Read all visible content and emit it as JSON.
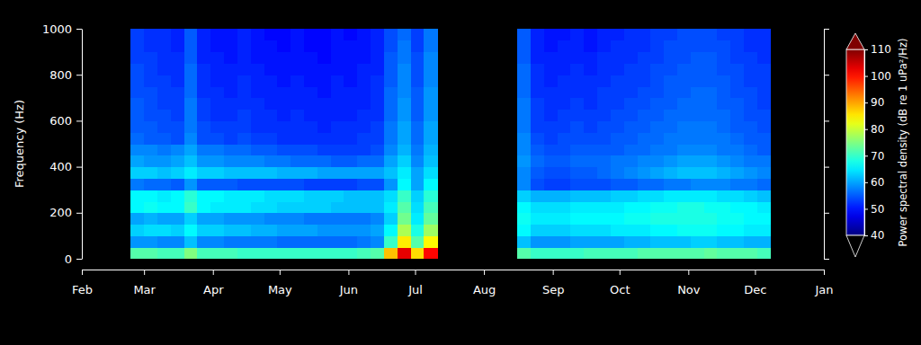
{
  "chart_data": {
    "type": "heatmap",
    "ylabel": "Frequency (Hz)",
    "xlim": [
      0,
      334
    ],
    "xticks": [
      {
        "value": 0,
        "label": "Feb"
      },
      {
        "value": 28,
        "label": "Mar"
      },
      {
        "value": 59,
        "label": "Apr"
      },
      {
        "value": 89,
        "label": "May"
      },
      {
        "value": 120,
        "label": "Jun"
      },
      {
        "value": 150,
        "label": "Jul"
      },
      {
        "value": 181,
        "label": "Aug"
      },
      {
        "value": 212,
        "label": "Sep"
      },
      {
        "value": 242,
        "label": "Oct"
      },
      {
        "value": 273,
        "label": "Nov"
      },
      {
        "value": 303,
        "label": "Dec"
      },
      {
        "value": 334,
        "label": "Jan"
      }
    ],
    "ylim": [
      0,
      1000
    ],
    "yticks": [
      0,
      200,
      400,
      600,
      800,
      1000
    ],
    "colorbar": {
      "label": "Power spectral density (dB re 1 uPa²/Hz)",
      "range": [
        40,
        110
      ],
      "ticks": [
        40,
        50,
        60,
        70,
        80,
        90,
        100,
        110
      ]
    },
    "x": [
      25,
      31,
      37,
      43,
      49,
      55,
      61,
      67,
      73,
      79,
      85,
      91,
      97,
      103,
      109,
      115,
      121,
      127,
      133,
      139,
      145,
      151,
      157,
      163,
      169,
      175,
      181,
      187,
      193,
      199,
      205,
      211,
      217,
      223,
      229,
      235,
      241,
      247,
      253,
      259,
      265,
      271,
      277,
      283,
      289,
      295,
      301,
      307
    ],
    "y": [
      25,
      75,
      125,
      175,
      225,
      275,
      325,
      375,
      425,
      475,
      525,
      575,
      625,
      675,
      725,
      775,
      825,
      875,
      925,
      975
    ],
    "z": [
      [
        72,
        72,
        71,
        71,
        75,
        71,
        71,
        71,
        70,
        70,
        70,
        70,
        70,
        70,
        70,
        70,
        70,
        71,
        72,
        88,
        103,
        86,
        101,
        null,
        null,
        null,
        null,
        null,
        null,
        72,
        70,
        70,
        70,
        70,
        71,
        71,
        71,
        71,
        72,
        72,
        72,
        72,
        72,
        73,
        72,
        72,
        72,
        71
      ],
      [
        59,
        59,
        58,
        58,
        62,
        58,
        58,
        57,
        57,
        57,
        57,
        56,
        56,
        56,
        56,
        56,
        56,
        57,
        58,
        70,
        85,
        72,
        84,
        null,
        null,
        null,
        null,
        null,
        null,
        62,
        59,
        59,
        59,
        60,
        60,
        60,
        60,
        61,
        61,
        62,
        62,
        62,
        63,
        63,
        62,
        62,
        61,
        61
      ],
      [
        63,
        64,
        64,
        63,
        66,
        63,
        63,
        62,
        62,
        61,
        61,
        60,
        60,
        60,
        59,
        59,
        59,
        59,
        60,
        66,
        78,
        68,
        77,
        null,
        null,
        null,
        null,
        null,
        null,
        66,
        63,
        63,
        63,
        64,
        64,
        64,
        65,
        65,
        65,
        66,
        66,
        67,
        67,
        67,
        66,
        66,
        65,
        65
      ],
      [
        60,
        61,
        60,
        60,
        63,
        60,
        60,
        59,
        59,
        59,
        58,
        58,
        58,
        57,
        57,
        57,
        57,
        57,
        58,
        63,
        74,
        65,
        73,
        null,
        null,
        null,
        null,
        null,
        null,
        67,
        65,
        65,
        65,
        66,
        66,
        66,
        66,
        67,
        67,
        68,
        68,
        68,
        68,
        68,
        67,
        67,
        66,
        66
      ],
      [
        66,
        67,
        66,
        66,
        70,
        66,
        65,
        65,
        65,
        64,
        64,
        63,
        63,
        63,
        63,
        62,
        62,
        62,
        62,
        65,
        72,
        64,
        71,
        null,
        null,
        null,
        null,
        null,
        null,
        66,
        64,
        64,
        64,
        65,
        65,
        65,
        65,
        66,
        66,
        67,
        67,
        68,
        68,
        67,
        67,
        66,
        66,
        65
      ],
      [
        66,
        66,
        65,
        66,
        69,
        66,
        66,
        65,
        65,
        65,
        64,
        64,
        64,
        63,
        63,
        63,
        62,
        62,
        62,
        64,
        70,
        63,
        69,
        null,
        null,
        null,
        null,
        null,
        null,
        63,
        61,
        61,
        61,
        62,
        62,
        62,
        63,
        63,
        64,
        64,
        65,
        65,
        65,
        65,
        64,
        64,
        63,
        62
      ],
      [
        57,
        56,
        56,
        55,
        59,
        55,
        55,
        55,
        54,
        54,
        54,
        54,
        54,
        53,
        53,
        53,
        53,
        54,
        54,
        59,
        66,
        60,
        66,
        null,
        null,
        null,
        null,
        null,
        null,
        58,
        54,
        53,
        53,
        54,
        54,
        54,
        55,
        55,
        56,
        56,
        57,
        57,
        58,
        58,
        58,
        57,
        57,
        56
      ],
      [
        63,
        63,
        62,
        63,
        65,
        63,
        63,
        62,
        62,
        62,
        62,
        61,
        61,
        61,
        60,
        60,
        60,
        60,
        60,
        62,
        65,
        60,
        64,
        null,
        null,
        null,
        null,
        null,
        null,
        58,
        55,
        54,
        54,
        55,
        55,
        56,
        57,
        58,
        59,
        60,
        61,
        62,
        62,
        62,
        61,
        60,
        59,
        58
      ],
      [
        60,
        59,
        59,
        60,
        62,
        59,
        59,
        58,
        58,
        58,
        57,
        57,
        56,
        56,
        56,
        55,
        55,
        56,
        56,
        60,
        63,
        58,
        62,
        null,
        null,
        null,
        null,
        null,
        null,
        59,
        56,
        55,
        55,
        56,
        56,
        56,
        57,
        57,
        58,
        58,
        59,
        60,
        60,
        60,
        59,
        58,
        57,
        57
      ],
      [
        58,
        58,
        57,
        58,
        60,
        57,
        57,
        56,
        56,
        55,
        55,
        54,
        54,
        54,
        53,
        53,
        53,
        53,
        54,
        58,
        61,
        57,
        61,
        null,
        null,
        null,
        null,
        null,
        null,
        58,
        55,
        54,
        54,
        55,
        55,
        55,
        55,
        56,
        56,
        57,
        57,
        58,
        58,
        58,
        57,
        57,
        56,
        55
      ],
      [
        56,
        55,
        55,
        54,
        58,
        54,
        54,
        53,
        54,
        53,
        53,
        52,
        52,
        52,
        52,
        52,
        52,
        53,
        53,
        57,
        60,
        56,
        60,
        null,
        null,
        null,
        null,
        null,
        null,
        58,
        54,
        53,
        54,
        54,
        54,
        54,
        55,
        55,
        56,
        56,
        57,
        57,
        57,
        57,
        57,
        56,
        55,
        55
      ],
      [
        55,
        55,
        54,
        54,
        57,
        54,
        53,
        53,
        53,
        52,
        52,
        52,
        52,
        52,
        51,
        52,
        52,
        52,
        53,
        57,
        60,
        56,
        60,
        null,
        null,
        null,
        null,
        null,
        null,
        57,
        53,
        53,
        53,
        54,
        53,
        54,
        54,
        55,
        55,
        56,
        56,
        57,
        57,
        57,
        56,
        55,
        55,
        54
      ],
      [
        55,
        54,
        54,
        53,
        57,
        53,
        52,
        52,
        53,
        52,
        52,
        51,
        52,
        51,
        51,
        51,
        51,
        52,
        52,
        56,
        59,
        55,
        59,
        null,
        null,
        null,
        null,
        null,
        null,
        57,
        53,
        52,
        53,
        53,
        53,
        53,
        54,
        54,
        55,
        55,
        56,
        56,
        56,
        56,
        56,
        55,
        54,
        54
      ],
      [
        55,
        54,
        53,
        53,
        57,
        53,
        52,
        52,
        52,
        52,
        51,
        51,
        51,
        51,
        51,
        51,
        51,
        51,
        52,
        56,
        59,
        55,
        59,
        null,
        null,
        null,
        null,
        null,
        null,
        57,
        53,
        52,
        52,
        53,
        52,
        53,
        53,
        54,
        54,
        55,
        55,
        56,
        56,
        56,
        55,
        55,
        54,
        53
      ],
      [
        54,
        54,
        53,
        53,
        56,
        52,
        52,
        51,
        52,
        51,
        51,
        51,
        51,
        51,
        50,
        51,
        51,
        51,
        52,
        56,
        58,
        55,
        59,
        null,
        null,
        null,
        null,
        null,
        null,
        56,
        52,
        52,
        52,
        52,
        52,
        53,
        53,
        53,
        54,
        54,
        55,
        55,
        56,
        56,
        55,
        54,
        54,
        53
      ],
      [
        54,
        53,
        53,
        52,
        56,
        52,
        51,
        51,
        52,
        51,
        51,
        50,
        51,
        50,
        50,
        51,
        50,
        51,
        52,
        55,
        58,
        54,
        58,
        null,
        null,
        null,
        null,
        null,
        null,
        56,
        52,
        51,
        52,
        52,
        52,
        52,
        53,
        53,
        53,
        54,
        55,
        55,
        55,
        55,
        55,
        54,
        53,
        53
      ],
      [
        54,
        53,
        52,
        52,
        56,
        52,
        51,
        51,
        51,
        51,
        50,
        50,
        50,
        50,
        50,
        50,
        50,
        51,
        51,
        55,
        58,
        54,
        58,
        null,
        null,
        null,
        null,
        null,
        null,
        56,
        52,
        51,
        51,
        52,
        51,
        52,
        52,
        53,
        53,
        54,
        54,
        55,
        55,
        55,
        54,
        54,
        53,
        53
      ],
      [
        53,
        53,
        52,
        52,
        55,
        51,
        51,
        50,
        51,
        50,
        50,
        50,
        50,
        50,
        49,
        50,
        50,
        50,
        51,
        55,
        57,
        54,
        58,
        null,
        null,
        null,
        null,
        null,
        null,
        55,
        51,
        51,
        51,
        51,
        51,
        52,
        52,
        52,
        53,
        53,
        54,
        54,
        55,
        55,
        54,
        53,
        53,
        52
      ],
      [
        53,
        52,
        52,
        51,
        55,
        51,
        50,
        50,
        51,
        50,
        50,
        49,
        50,
        49,
        49,
        50,
        50,
        50,
        51,
        54,
        57,
        53,
        57,
        null,
        null,
        null,
        null,
        null,
        null,
        55,
        51,
        50,
        51,
        51,
        50,
        51,
        52,
        52,
        52,
        53,
        54,
        54,
        54,
        54,
        54,
        53,
        52,
        52
      ],
      [
        53,
        52,
        52,
        51,
        55,
        51,
        50,
        50,
        51,
        50,
        49,
        49,
        50,
        49,
        49,
        50,
        49,
        50,
        51,
        54,
        56,
        53,
        57,
        null,
        null,
        null,
        null,
        null,
        null,
        55,
        51,
        50,
        50,
        51,
        50,
        51,
        51,
        52,
        52,
        53,
        53,
        54,
        54,
        54,
        53,
        53,
        52,
        52
      ]
    ]
  }
}
